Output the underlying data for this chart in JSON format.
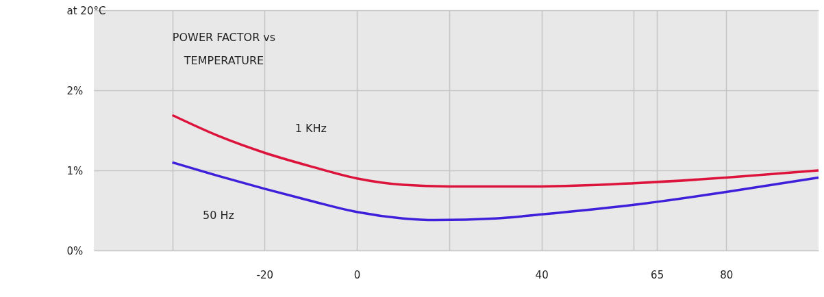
{
  "chart_data": {
    "type": "line",
    "title": "POWER FACTOR vs\nTEMPERATURE",
    "x": [
      -40,
      -30,
      -20,
      -10,
      0,
      10,
      20,
      30,
      40,
      60,
      80,
      100
    ],
    "series": [
      {
        "name": "1 KHz",
        "color": "#dc143c",
        "values": [
          1.69,
          1.43,
          1.22,
          1.05,
          0.9,
          0.82,
          0.8,
          0.8,
          0.8,
          0.84,
          0.91,
          1.0
        ]
      },
      {
        "name": "50 Hz",
        "color": "#3f1fd9",
        "x": [
          -40,
          -30,
          -20,
          -10,
          0,
          10,
          17,
          30,
          40,
          60,
          80,
          100
        ],
        "values": [
          1.1,
          0.93,
          0.77,
          0.62,
          0.48,
          0.4,
          0.38,
          0.4,
          0.45,
          0.57,
          0.73,
          0.91
        ]
      }
    ],
    "xlim": [
      -57,
      100
    ],
    "xticks": [
      {
        "value": -40,
        "label": null
      },
      -20,
      0,
      {
        "value": 20,
        "label": null
      },
      40,
      {
        "value": 60,
        "label": null
      },
      65,
      80
    ],
    "ylim": [
      0,
      3
    ],
    "yticks": [
      {
        "value": 0,
        "label": "0%"
      },
      {
        "value": 1,
        "label": "1%"
      },
      {
        "value": 2,
        "label": "2%"
      },
      {
        "value": 3,
        "label": "at 20°C"
      }
    ],
    "grid": true,
    "marker": "none",
    "line_style": "solid"
  }
}
